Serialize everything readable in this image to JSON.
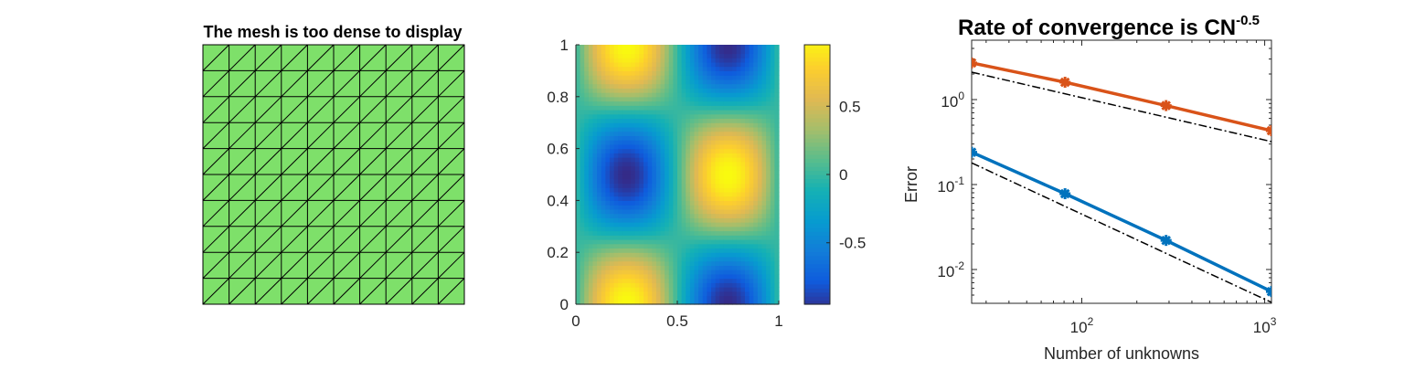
{
  "mesh_panel": {
    "title": "The mesh is too dense to display",
    "fill_color": "#7ee06a",
    "divisions": 10
  },
  "field_panel": {
    "x_ticks": [
      "0",
      "0.5",
      "1"
    ],
    "y_ticks": [
      "0",
      "0.2",
      "0.4",
      "0.6",
      "0.8",
      "1"
    ],
    "colorbar_ticks": [
      "0.5",
      "0",
      "-0.5"
    ]
  },
  "convergence_panel": {
    "title_main": "Rate of convergence is CN",
    "title_exponent": "-0.5",
    "xlabel": "Number of unknowns",
    "ylabel": "Error",
    "x_tick_labels": [
      {
        "base": "10",
        "exp": "2"
      },
      {
        "base": "10",
        "exp": "3"
      }
    ],
    "y_tick_labels": [
      {
        "base": "10",
        "exp": "0"
      },
      {
        "base": "10",
        "exp": "-1"
      },
      {
        "base": "10",
        "exp": "-2"
      }
    ]
  },
  "chart_data": [
    {
      "type": "heatmap",
      "description_function": "sin(2*pi*x)*cos(2*pi*y)",
      "x_range": [
        0,
        1
      ],
      "y_range": [
        0,
        1
      ],
      "color_range": [
        -1,
        1
      ],
      "colorbar": true
    },
    {
      "type": "line",
      "title": "Rate of convergence is CN^-0.5",
      "xlabel": "Number of unknowns",
      "ylabel": "Error",
      "xscale": "log",
      "yscale": "log",
      "xlim": [
        25,
        1089
      ],
      "ylim": [
        0.004,
        5
      ],
      "series": [
        {
          "color": "#d95319",
          "style": "solid-markers",
          "x": [
            25,
            81,
            289,
            1089
          ],
          "y": [
            2.7,
            1.6,
            0.85,
            0.43
          ]
        },
        {
          "color": "#0072bd",
          "style": "solid-markers",
          "x": [
            25,
            81,
            289,
            1089
          ],
          "y": [
            0.24,
            0.078,
            0.022,
            0.0055
          ]
        },
        {
          "color": "#000000",
          "style": "dash-dot",
          "x": [
            25,
            1089
          ],
          "y": [
            2.1,
            0.32
          ]
        },
        {
          "color": "#000000",
          "style": "dash-dot",
          "x": [
            25,
            1089
          ],
          "y": [
            0.18,
            0.0041
          ]
        }
      ]
    }
  ]
}
